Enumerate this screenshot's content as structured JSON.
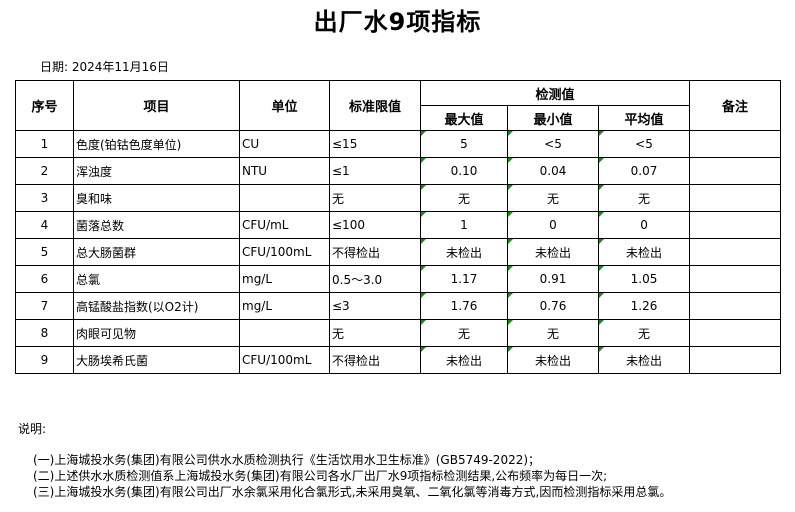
{
  "title": "出厂水9项指标",
  "date": "日期: 2024年11月16日",
  "headers": {
    "no": "序号",
    "item": "项目",
    "unit": "单位",
    "limit": "标准限值",
    "measured": "检测值",
    "max": "最大值",
    "min": "最小值",
    "avg": "平均值",
    "remark": "备注"
  },
  "rows": [
    {
      "no": "1",
      "item": "色度(铂钴色度单位)",
      "unit": "CU",
      "limit": "≤15",
      "max": "5",
      "min": "<5",
      "avg": "<5"
    },
    {
      "no": "2",
      "item": "浑浊度",
      "unit": "NTU",
      "limit": "≤1",
      "max": "0.10",
      "min": "0.04",
      "avg": "0.07"
    },
    {
      "no": "3",
      "item": "臭和味",
      "unit": "",
      "limit": "无",
      "max": "无",
      "min": "无",
      "avg": "无"
    },
    {
      "no": "4",
      "item": "菌落总数",
      "unit": "CFU/mL",
      "limit": "≤100",
      "max": "1",
      "min": "0",
      "avg": "0"
    },
    {
      "no": "5",
      "item": "总大肠菌群",
      "unit": "CFU/100mL",
      "limit": "不得检出",
      "max": "未检出",
      "min": "未检出",
      "avg": "未检出"
    },
    {
      "no": "6",
      "item": "总氯",
      "unit": "mg/L",
      "limit": "0.5～3.0",
      "max": "1.17",
      "min": "0.91",
      "avg": "1.05"
    },
    {
      "no": "7",
      "item": "高锰酸盐指数(以O2计)",
      "unit": "mg/L",
      "limit": "≤3",
      "max": "1.76",
      "min": "0.76",
      "avg": "1.26"
    },
    {
      "no": "8",
      "item": "肉眼可见物",
      "unit": "",
      "limit": "无",
      "max": "无",
      "min": "无",
      "avg": "无"
    },
    {
      "no": "9",
      "item": "大肠埃希氏菌",
      "unit": "CFU/100mL",
      "limit": "不得检出",
      "max": "未检出",
      "min": "未检出",
      "avg": "未检出"
    }
  ],
  "notes_title": "说明:",
  "notes": [
    "(一)上海城投水务(集团)有限公司供水水质检测执行《生活饮用水卫生标准》(GB5749-2022)；",
    "(二)上述供水水质检测值系上海城投水务(集团)有限公司各水厂出厂水9项指标检测结果,公布频率为每日一次;",
    "(三)上海城投水务(集团)有限公司出厂水余氯采用化合氯形式,未采用臭氧、二氧化氯等消毒方式,因而检测指标采用总氯。"
  ]
}
